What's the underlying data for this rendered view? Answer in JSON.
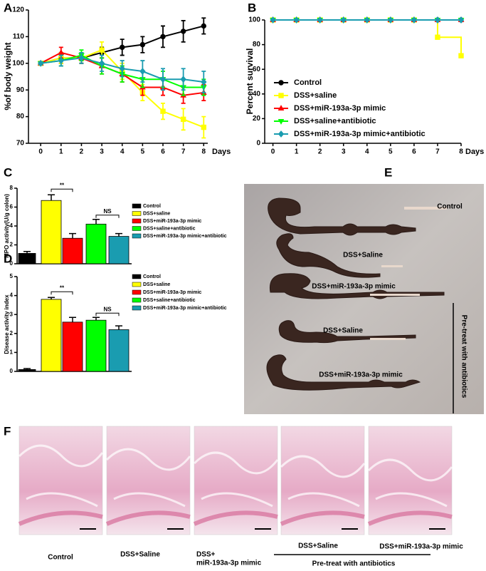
{
  "chart_data": [
    {
      "panel": "A",
      "type": "line",
      "ylabel": "%of body weight",
      "xlabel": "Days",
      "x": [
        0,
        1,
        2,
        3,
        4,
        5,
        6,
        7,
        8
      ],
      "xlim": [
        -0.6,
        8.2
      ],
      "ylim": [
        70,
        120
      ],
      "xticks": [
        0,
        1,
        2,
        3,
        4,
        5,
        6,
        7,
        8
      ],
      "yticks": [
        70,
        80,
        90,
        100,
        110,
        120
      ],
      "series": [
        {
          "color": "#000000",
          "marker": "circle",
          "values": [
            100,
            102,
            102,
            104,
            106,
            107,
            110,
            112,
            114
          ],
          "errors": [
            0.5,
            2,
            2,
            2,
            3,
            3,
            4,
            4,
            3
          ]
        },
        {
          "color": "#ffff00",
          "marker": "square",
          "values": [
            100,
            102,
            102,
            105,
            97,
            89,
            82,
            79,
            76
          ],
          "errors": [
            0.5,
            2,
            2,
            3,
            3,
            3,
            3,
            4,
            4
          ]
        },
        {
          "color": "#ff0000",
          "marker": "triangle",
          "values": [
            100,
            104,
            102,
            99,
            96,
            91,
            91,
            88,
            89
          ],
          "errors": [
            0.5,
            2,
            2,
            3,
            3,
            3,
            3,
            3,
            3
          ]
        },
        {
          "color": "#00ff00",
          "marker": "triangle-down",
          "values": [
            100,
            101,
            103,
            99,
            96,
            94,
            94,
            91,
            91
          ],
          "errors": [
            0.5,
            2,
            2,
            3,
            3,
            3,
            3,
            3,
            3
          ]
        },
        {
          "color": "#1a9cb0",
          "marker": "diamond",
          "values": [
            100,
            101,
            102,
            100,
            98,
            97,
            94,
            94,
            93
          ],
          "errors": [
            0.5,
            2,
            2,
            3,
            3,
            4,
            4,
            4,
            4
          ]
        }
      ]
    },
    {
      "panel": "B",
      "type": "line",
      "step": true,
      "ylabel": "Percent survival",
      "xlabel": "Days",
      "x": [
        0,
        1,
        2,
        3,
        4,
        5,
        6,
        7,
        8
      ],
      "xlim": [
        -0.35,
        8
      ],
      "ylim": [
        0,
        100
      ],
      "xticks": [
        0,
        1,
        2,
        3,
        4,
        5,
        6,
        7,
        8
      ],
      "yticks": [
        0,
        20,
        40,
        60,
        80,
        100
      ],
      "series": [
        {
          "name": "Control",
          "color": "#000000",
          "marker": "circle",
          "values": [
            100,
            100,
            100,
            100,
            100,
            100,
            100,
            100,
            100
          ]
        },
        {
          "name": "DSS+saline",
          "color": "#ffff00",
          "marker": "square",
          "values": [
            100,
            100,
            100,
            100,
            100,
            100,
            100,
            86,
            71
          ]
        },
        {
          "name": "DSS+miR-193a-3p mimic",
          "color": "#ff0000",
          "marker": "triangle",
          "values": [
            100,
            100,
            100,
            100,
            100,
            100,
            100,
            100,
            100
          ]
        },
        {
          "name": "DSS+saline+antibiotic",
          "color": "#00ff00",
          "marker": "triangle-down",
          "values": [
            100,
            100,
            100,
            100,
            100,
            100,
            100,
            100,
            100
          ]
        },
        {
          "name": "DSS+miR-193a-3p mimic+antibiotic",
          "color": "#1a9cb0",
          "marker": "diamond",
          "values": [
            100,
            100,
            100,
            100,
            100,
            100,
            100,
            100,
            100
          ]
        }
      ]
    },
    {
      "panel": "C",
      "type": "bar",
      "ylabel": "MPO activity(U/g colon)",
      "ylim": [
        0,
        8
      ],
      "yticks": [
        0,
        2,
        4,
        6,
        8
      ],
      "series": [
        {
          "name": "Control",
          "color": "#000000",
          "values": [
            1.1
          ],
          "errors": [
            0.2
          ]
        },
        {
          "name": "DSS+saline",
          "color": "#ffff00",
          "values": [
            6.7
          ],
          "errors": [
            0.6
          ]
        },
        {
          "name": "DSS+miR-193a-3p mimic",
          "color": "#ff0000",
          "values": [
            2.7
          ],
          "errors": [
            0.5
          ]
        },
        {
          "name": "DSS+saline+antibiotic",
          "color": "#00ff00",
          "values": [
            4.2
          ],
          "errors": [
            0.5
          ]
        },
        {
          "name": "DSS+miR-193a-3p mimic+antibiotic",
          "color": "#1a9cb0",
          "values": [
            2.9
          ],
          "errors": [
            0.3
          ]
        }
      ],
      "annotations": [
        "**",
        "NS"
      ]
    },
    {
      "panel": "D",
      "type": "bar",
      "ylabel": "Disease activity index",
      "ylim": [
        0,
        5
      ],
      "yticks": [
        0,
        1,
        2,
        3,
        4,
        5
      ],
      "series": [
        {
          "name": "Control",
          "color": "#000000",
          "values": [
            0.1
          ],
          "errors": [
            0.05
          ]
        },
        {
          "name": "DSS+saline",
          "color": "#ffff00",
          "values": [
            3.8
          ],
          "errors": [
            0.1
          ]
        },
        {
          "name": "DSS+miR-193a-3p mimic",
          "color": "#ff0000",
          "values": [
            2.6
          ],
          "errors": [
            0.25
          ]
        },
        {
          "name": "DSS+saline+antibiotic",
          "color": "#00ff00",
          "values": [
            2.7
          ],
          "errors": [
            0.15
          ]
        },
        {
          "name": "DSS+miR-193a-3p mimic+antibiotic",
          "color": "#1a9cb0",
          "values": [
            2.2
          ],
          "errors": [
            0.2
          ]
        }
      ],
      "annotations": [
        "**",
        "NS"
      ]
    }
  ],
  "photo_e": {
    "panel": "E",
    "labels": [
      "Control",
      "DSS+Saline",
      "DSS+miR-193a-3p mimic",
      "DSS+Saline",
      "DSS+miR-193a-3p mimic"
    ],
    "group": "Pre-treat with antibiotics"
  },
  "photo_f": {
    "panel": "F",
    "captions": [
      "Control",
      "DSS+Saline",
      "DSS+",
      "miR-193a-3p mimic",
      "DSS+Saline",
      "DSS+miR-193a-3p mimic"
    ],
    "group": "Pre-treat with antibiotics"
  }
}
